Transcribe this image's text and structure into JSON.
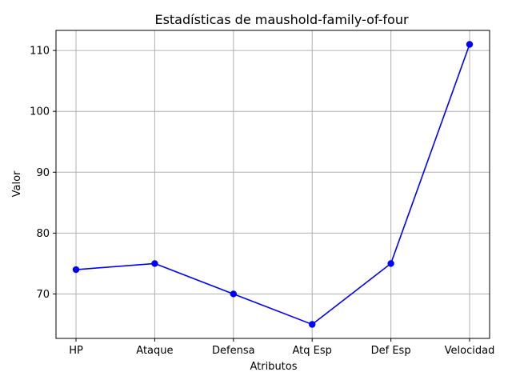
{
  "chart_data": {
    "type": "line",
    "title": "Estadísticas de maushold-family-of-four",
    "xlabel": "Atributos",
    "ylabel": "Valor",
    "categories": [
      "HP",
      "Ataque",
      "Defensa",
      "Atq Esp",
      "Def Esp",
      "Velocidad"
    ],
    "series": [
      {
        "values": [
          74,
          75,
          70,
          65,
          75,
          111
        ],
        "color": "#0000ff",
        "marker": "circle"
      }
    ],
    "ylim": [
      62.7,
      113.3
    ],
    "yticks": [
      70,
      80,
      90,
      100,
      110
    ],
    "grid": true,
    "legend": false
  }
}
